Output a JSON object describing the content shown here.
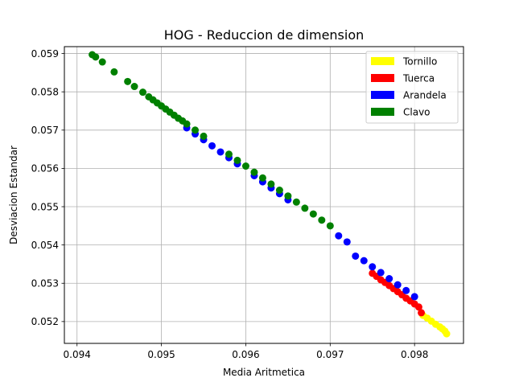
{
  "chart_data": {
    "type": "scatter",
    "title": "HOG - Reduccion de dimension",
    "xlabel": "Media Aritmetica",
    "ylabel": "Desviacion Estandar",
    "xlim": [
      0.09385,
      0.09858
    ],
    "ylim": [
      0.05143,
      0.05918
    ],
    "xticks": [
      0.094,
      0.095,
      0.096,
      0.097,
      0.098
    ],
    "xtick_labels": [
      "0.094",
      "0.095",
      "0.096",
      "0.097",
      "0.098"
    ],
    "yticks": [
      0.052,
      0.053,
      0.054,
      0.055,
      0.056,
      0.057,
      0.058,
      0.059
    ],
    "ytick_labels": [
      "0.052",
      "0.053",
      "0.054",
      "0.055",
      "0.056",
      "0.057",
      "0.058",
      "0.059"
    ],
    "grid": true,
    "legend_position": "top-right",
    "series": [
      {
        "name": "Tornillo",
        "color": "#ffff00",
        "x": [
          0.0981,
          0.09815,
          0.0982,
          0.09825,
          0.0983,
          0.09833,
          0.09836,
          0.09838
        ],
        "y": [
          0.05216,
          0.05209,
          0.05201,
          0.05193,
          0.05186,
          0.05181,
          0.05175,
          0.05168
        ]
      },
      {
        "name": "Tuerca",
        "color": "#ff0000",
        "x": [
          0.0975,
          0.09755,
          0.0976,
          0.09765,
          0.0977,
          0.09775,
          0.0978,
          0.09785,
          0.0979,
          0.09795,
          0.098,
          0.09805,
          0.09808
        ],
        "y": [
          0.05326,
          0.05318,
          0.05309,
          0.05302,
          0.05294,
          0.05286,
          0.05278,
          0.0527,
          0.05261,
          0.05254,
          0.05246,
          0.05238,
          0.05223
        ]
      },
      {
        "name": "Arandela",
        "color": "#0000ff",
        "x": [
          0.0953,
          0.0954,
          0.0955,
          0.0956,
          0.0957,
          0.0958,
          0.0959,
          0.0961,
          0.0962,
          0.0963,
          0.0964,
          0.0965,
          0.0971,
          0.0972,
          0.0973,
          0.0974,
          0.0975,
          0.0976,
          0.0977,
          0.0978,
          0.0979,
          0.098
        ],
        "y": [
          0.05706,
          0.0569,
          0.05675,
          0.05659,
          0.05643,
          0.05628,
          0.05612,
          0.05581,
          0.05565,
          0.05549,
          0.05534,
          0.05518,
          0.05424,
          0.05408,
          0.05371,
          0.05359,
          0.05343,
          0.05328,
          0.05312,
          0.05296,
          0.05281,
          0.05265
        ]
      },
      {
        "name": "Clavo",
        "color": "#008000",
        "x": [
          0.09418,
          0.09422,
          0.0943,
          0.09444,
          0.0946,
          0.09468,
          0.09478,
          0.09485,
          0.0949,
          0.09495,
          0.095,
          0.09505,
          0.0951,
          0.09515,
          0.0952,
          0.09525,
          0.0953,
          0.0954,
          0.0955,
          0.0958,
          0.0959,
          0.096,
          0.0961,
          0.0962,
          0.0963,
          0.0964,
          0.0965,
          0.0966,
          0.0967,
          0.0968,
          0.0969,
          0.097
        ],
        "y": [
          0.05897,
          0.05891,
          0.05878,
          0.05852,
          0.05827,
          0.05814,
          0.05799,
          0.05787,
          0.05779,
          0.05771,
          0.05763,
          0.05755,
          0.05747,
          0.05739,
          0.05731,
          0.05724,
          0.05716,
          0.057,
          0.05684,
          0.05637,
          0.05621,
          0.05606,
          0.0559,
          0.05575,
          0.05559,
          0.05543,
          0.05528,
          0.05512,
          0.05496,
          0.05481,
          0.05465,
          0.0545
        ]
      }
    ]
  }
}
